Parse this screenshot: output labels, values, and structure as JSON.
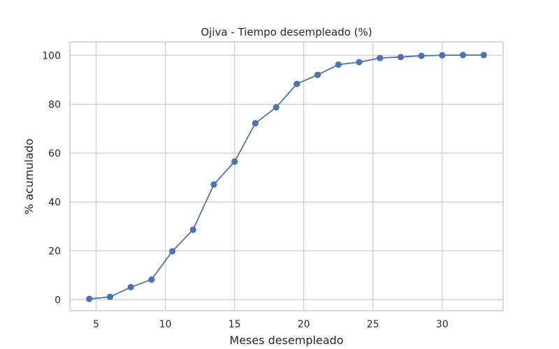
{
  "chart_data": {
    "type": "line",
    "title": "Ojiva - Tiempo desempleado (%)",
    "xlabel": "Meses desempleado",
    "ylabel": "% acumulado",
    "xlim": [
      3.1,
      34.4
    ],
    "ylim": [
      -4.5,
      105.5
    ],
    "xticks": [
      5,
      10,
      15,
      20,
      25,
      30
    ],
    "yticks": [
      0,
      20,
      40,
      60,
      80,
      100
    ],
    "grid": true,
    "series": [
      {
        "color": "#4c72b0",
        "marker": "circle",
        "x": [
          4.5,
          6,
          7.5,
          9,
          10.5,
          12,
          13.5,
          15,
          16.5,
          18,
          19.5,
          21,
          22.5,
          24,
          25.5,
          27,
          28.5,
          30,
          31.5,
          33
        ],
        "y": [
          0.3,
          1.1,
          5.1,
          8.2,
          19.8,
          28.6,
          47.1,
          56.5,
          72.2,
          78.7,
          88.3,
          92.0,
          96.2,
          97.2,
          98.9,
          99.3,
          99.8,
          100.0,
          100.1,
          100.1
        ]
      }
    ]
  }
}
